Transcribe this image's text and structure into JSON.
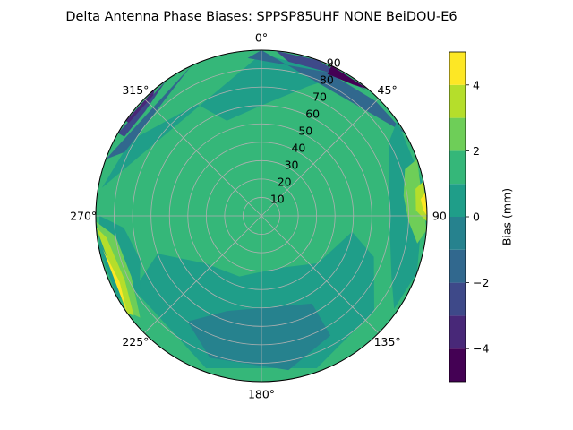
{
  "figure": {
    "title": "Delta Antenna Phase Biases: SPPSP85UHF      NONE BeiDOU-E6"
  },
  "chart_data": {
    "type": "polar-contour",
    "title": "Delta Antenna Phase Biases: SPPSP85UHF      NONE BeiDOU-E6",
    "theta_zero": "top",
    "theta_direction": "clockwise",
    "theta_ticks": [
      {
        "deg": 0,
        "label": "0°"
      },
      {
        "deg": 45,
        "label": "45°"
      },
      {
        "deg": 90,
        "label": "90"
      },
      {
        "deg": 135,
        "label": "135°"
      },
      {
        "deg": 180,
        "label": "180°"
      },
      {
        "deg": 225,
        "label": "225°"
      },
      {
        "deg": 270,
        "label": "270°"
      },
      {
        "deg": 315,
        "label": "315°"
      }
    ],
    "radial_ticks": [
      {
        "r": 10,
        "label": "10"
      },
      {
        "r": 20,
        "label": "20"
      },
      {
        "r": 30,
        "label": "30"
      },
      {
        "r": 40,
        "label": "40"
      },
      {
        "r": 50,
        "label": "50"
      },
      {
        "r": 60,
        "label": "60"
      },
      {
        "r": 70,
        "label": "70"
      },
      {
        "r": 80,
        "label": "80"
      },
      {
        "r": 90,
        "label": "90"
      }
    ],
    "rlim": [
      0,
      90
    ],
    "radial_label_angle_deg": 22.5,
    "grid": true,
    "colormap": "viridis",
    "levels": [
      -5,
      -4,
      -3,
      -2,
      -1,
      0,
      1,
      2,
      3,
      4,
      5
    ],
    "level_colors": [
      "#440154",
      "#482878",
      "#3e4989",
      "#31688e",
      "#26828e",
      "#1f9e89",
      "#35b779",
      "#6ece58",
      "#b5de2b",
      "#fde725"
    ],
    "colorbar": {
      "label": "Bias (mm)",
      "ticks": [
        {
          "value": 4,
          "label": "4"
        },
        {
          "value": 2,
          "label": "2"
        },
        {
          "value": 0,
          "label": "0"
        },
        {
          "value": -2,
          "label": "−2"
        },
        {
          "value": -4,
          "label": "−4"
        }
      ]
    },
    "regions": [
      {
        "name": "background",
        "value": 1.5,
        "points": [
          [
            0,
            0
          ],
          [
            360,
            90
          ]
        ]
      },
      {
        "value": 0.5,
        "points": [
          [
            330,
            70
          ],
          [
            300,
            82
          ],
          [
            280,
            88
          ],
          [
            0,
            88
          ],
          [
            30,
            88
          ],
          [
            20,
            75
          ],
          [
            0,
            60
          ],
          [
            340,
            55
          ]
        ]
      },
      {
        "value": 0.5,
        "points": [
          [
            100,
            50
          ],
          [
            130,
            40
          ],
          [
            160,
            30
          ],
          [
            200,
            35
          ],
          [
            230,
            40
          ],
          [
            250,
            60
          ],
          [
            240,
            80
          ],
          [
            200,
            88
          ],
          [
            160,
            88
          ],
          [
            130,
            80
          ],
          [
            110,
            65
          ]
        ]
      },
      {
        "value": -0.5,
        "points": [
          [
            150,
            55
          ],
          [
            170,
            50
          ],
          [
            200,
            55
          ],
          [
            215,
            70
          ],
          [
            200,
            82
          ],
          [
            170,
            85
          ],
          [
            150,
            75
          ]
        ]
      },
      {
        "value": -1.5,
        "points": [
          [
            355,
            86
          ],
          [
            25,
            86
          ],
          [
            45,
            88
          ],
          [
            60,
            90
          ],
          [
            0,
            90
          ]
        ]
      },
      {
        "value": -2.5,
        "points": [
          [
            10,
            85
          ],
          [
            25,
            86
          ],
          [
            40,
            89
          ],
          [
            20,
            90
          ],
          [
            5,
            90
          ]
        ]
      },
      {
        "value": -4.5,
        "points": [
          [
            25,
            85
          ],
          [
            35,
            87
          ],
          [
            40,
            90
          ],
          [
            25,
            90
          ]
        ]
      },
      {
        "value": -1.5,
        "points": [
          [
            295,
            82
          ],
          [
            305,
            80
          ],
          [
            320,
            82
          ],
          [
            335,
            90
          ],
          [
            290,
            90
          ]
        ]
      },
      {
        "value": -2.5,
        "points": [
          [
            300,
            86
          ],
          [
            312,
            85
          ],
          [
            325,
            90
          ],
          [
            300,
            90
          ]
        ]
      },
      {
        "value": -3.5,
        "points": [
          [
            305,
            88
          ],
          [
            318,
            88
          ],
          [
            320,
            90
          ],
          [
            305,
            90
          ]
        ]
      },
      {
        "value": 0.5,
        "points": [
          [
            55,
            90
          ],
          [
            60,
            80
          ],
          [
            75,
            72
          ],
          [
            95,
            70
          ],
          [
            115,
            78
          ],
          [
            125,
            88
          ],
          [
            110,
            90
          ],
          [
            80,
            90
          ]
        ]
      },
      {
        "value": 2.5,
        "points": [
          [
            70,
            90
          ],
          [
            72,
            82
          ],
          [
            82,
            78
          ],
          [
            92,
            80
          ],
          [
            100,
            86
          ],
          [
            95,
            90
          ]
        ]
      },
      {
        "value": 3.5,
        "points": [
          [
            78,
            90
          ],
          [
            80,
            85
          ],
          [
            88,
            84
          ],
          [
            92,
            90
          ]
        ]
      },
      {
        "value": 4.5,
        "points": [
          [
            82,
            90
          ],
          [
            84,
            87
          ],
          [
            88,
            88
          ],
          [
            90,
            90
          ]
        ]
      },
      {
        "value": 0.5,
        "points": [
          [
            238,
            78
          ],
          [
            250,
            70
          ],
          [
            265,
            75
          ],
          [
            270,
            88
          ],
          [
            258,
            90
          ],
          [
            240,
            90
          ]
        ]
      },
      {
        "value": 2.5,
        "points": [
          [
            230,
            86
          ],
          [
            245,
            78
          ],
          [
            262,
            80
          ],
          [
            268,
            90
          ],
          [
            235,
            90
          ]
        ]
      },
      {
        "value": 3.5,
        "points": [
          [
            232,
            88
          ],
          [
            245,
            82
          ],
          [
            262,
            85
          ],
          [
            266,
            90
          ],
          [
            234,
            90
          ]
        ]
      },
      {
        "value": 4.5,
        "points": [
          [
            234,
            90
          ],
          [
            245,
            85
          ],
          [
            258,
            88
          ],
          [
            264,
            90
          ]
        ]
      }
    ]
  }
}
